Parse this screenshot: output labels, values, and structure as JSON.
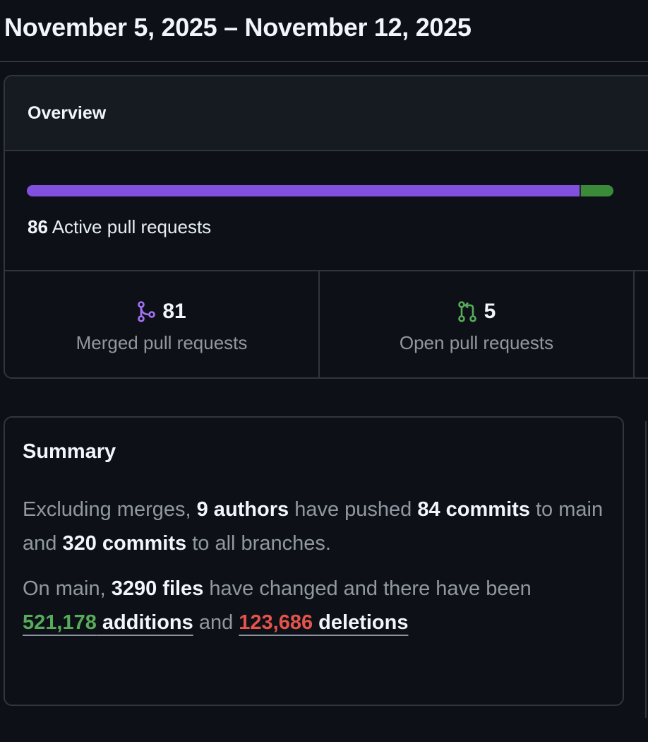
{
  "header": {
    "date_range": "November 5, 2025 – November 12, 2025"
  },
  "overview": {
    "title": "Overview",
    "active_count": "86",
    "active_label": "Active pull requests",
    "bar": {
      "merged_fraction": 0.942,
      "merged_color": "#8250df",
      "open_color": "#3a8a3a"
    },
    "stats": [
      {
        "icon": "git-merge-icon",
        "value": "81",
        "label": "Merged pull requests",
        "color": "#a371f7"
      },
      {
        "icon": "git-pull-request-icon",
        "value": "5",
        "label": "Open pull requests",
        "color": "#57ab5a"
      }
    ]
  },
  "summary": {
    "title": "Summary",
    "p1": {
      "t1": "Excluding merges, ",
      "authors": "9 authors",
      "t2": " have pushed ",
      "commits_main": "84 commits",
      "t3": " to main and ",
      "commits_all": "320 commits",
      "t4": " to all branches."
    },
    "p2": {
      "t1": "On main, ",
      "files": "3290 files",
      "t2": " have changed and there have been ",
      "additions_num": "521,178",
      "additions_word": " additions",
      "t3": " and ",
      "deletions_num": "123,686",
      "deletions_word": " deletions"
    }
  }
}
